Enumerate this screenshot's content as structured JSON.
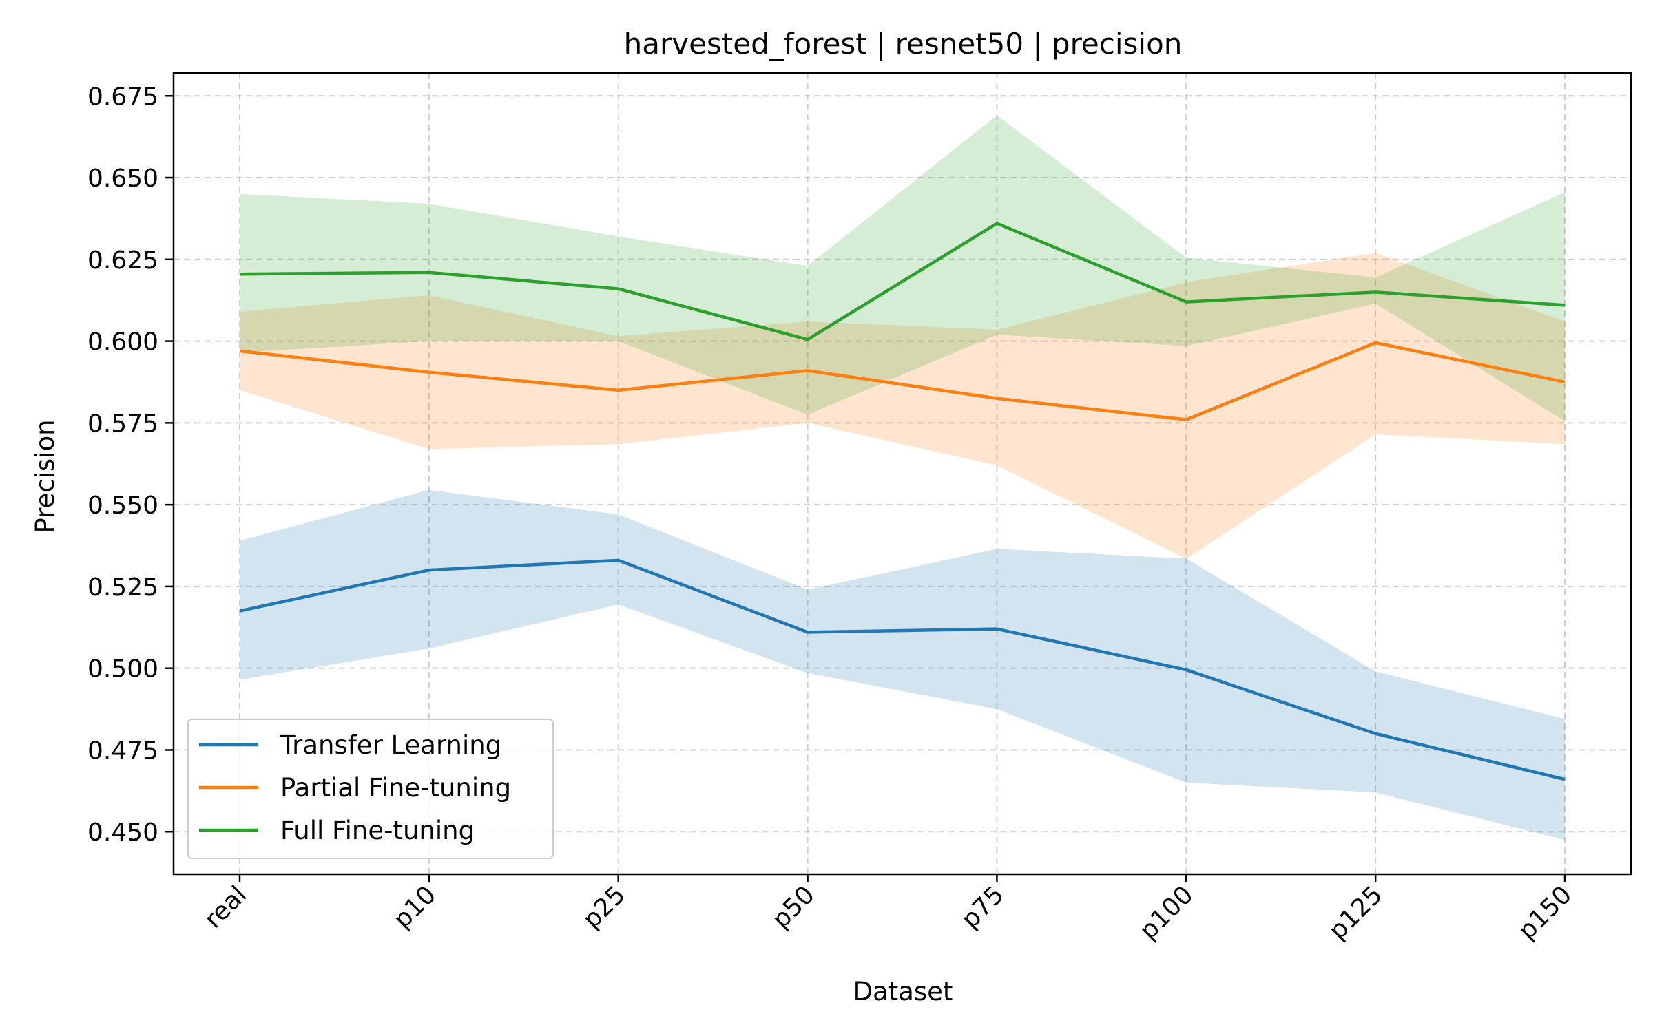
{
  "chart_data": {
    "type": "line",
    "title": "harvested_forest | resnet50 | precision",
    "xlabel": "Dataset",
    "ylabel": "Precision",
    "categories": [
      "real",
      "p10",
      "p25",
      "p50",
      "p75",
      "p100",
      "p125",
      "p150"
    ],
    "ylim": [
      0.437,
      0.682
    ],
    "yticks": [
      0.45,
      0.475,
      0.5,
      0.525,
      0.55,
      0.575,
      0.6,
      0.625,
      0.65,
      0.675
    ],
    "ytick_labels": [
      "0.450",
      "0.475",
      "0.500",
      "0.525",
      "0.550",
      "0.575",
      "0.600",
      "0.625",
      "0.650",
      "0.675"
    ],
    "grid": true,
    "legend_position": "lower-left",
    "series": [
      {
        "name": "Transfer Learning",
        "color": "#1f77b4",
        "values": [
          0.5175,
          0.53,
          0.533,
          0.511,
          0.512,
          0.4995,
          0.48,
          0.466
        ],
        "lower": [
          0.4965,
          0.506,
          0.5195,
          0.4985,
          0.4875,
          0.465,
          0.462,
          0.4475
        ],
        "upper": [
          0.539,
          0.5545,
          0.547,
          0.524,
          0.5365,
          0.5335,
          0.499,
          0.4845
        ]
      },
      {
        "name": "Partial Fine-tuning",
        "color": "#ff7f0e",
        "values": [
          0.597,
          0.5905,
          0.585,
          0.591,
          0.5825,
          0.576,
          0.5995,
          0.5875
        ],
        "lower": [
          0.585,
          0.567,
          0.5685,
          0.575,
          0.562,
          0.5335,
          0.5715,
          0.5685
        ],
        "upper": [
          0.609,
          0.614,
          0.6015,
          0.606,
          0.6035,
          0.618,
          0.627,
          0.606
        ]
      },
      {
        "name": "Full Fine-tuning",
        "color": "#2ca02c",
        "values": [
          0.6205,
          0.621,
          0.616,
          0.6005,
          0.636,
          0.612,
          0.615,
          0.611
        ],
        "lower": [
          0.5965,
          0.6,
          0.6,
          0.5775,
          0.602,
          0.5985,
          0.6115,
          0.5755
        ],
        "upper": [
          0.645,
          0.642,
          0.632,
          0.623,
          0.669,
          0.6255,
          0.6195,
          0.6455
        ]
      }
    ]
  }
}
